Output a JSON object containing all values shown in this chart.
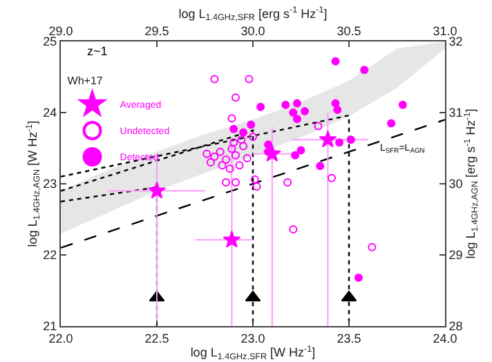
{
  "chart_data": {
    "type": "scatter",
    "xlabel": "log L$_{1.4GHz,SFR}$ [W Hz$^{-1}$]",
    "ylabel": "log L$_{1.4GHz,AGN}$ [W Hz$^{-1}$]",
    "x2label": "log L$_{1.4GHz,SFR}$ [erg s$^{-1}$ Hz$^{-1}$]",
    "y2label": "log L$_{1.4GHz,AGN}$ [erg s$^{-1}$ Hz$^{-1}$]",
    "legend_title": "Wh+17",
    "annotations": [
      "z~1",
      {
        "text": "L$_{SFR}$=L$_{AGN}$",
        "x": 23.78,
        "y": 23.6
      }
    ],
    "xlim": [
      22,
      24
    ],
    "xticks": [
      {
        "value": 22,
        "label": "22.0"
      },
      {
        "value": 22.5,
        "label": "22.5"
      },
      {
        "value": 23,
        "label": "23.0"
      },
      {
        "value": 23.5,
        "label": "23.5"
      },
      {
        "value": 24,
        "label": "24.0"
      }
    ],
    "ylim": [
      21,
      25
    ],
    "yticks": [
      21,
      22,
      23,
      24,
      25
    ],
    "x2lim": [
      29,
      31
    ],
    "x2ticks": [
      {
        "value": 29,
        "label": "29.0"
      },
      {
        "value": 29.5,
        "label": "29.5"
      },
      {
        "value": 30,
        "label": "30.0"
      },
      {
        "value": 30.5,
        "label": "30.5"
      },
      {
        "value": 31,
        "label": "31.0"
      }
    ],
    "y2lim": [
      28,
      32
    ],
    "y2ticks": [
      28,
      29,
      30,
      31,
      32
    ],
    "grid": false,
    "legend": "top left",
    "series": [
      {
        "type": "area",
        "color": "#e6e6e6",
        "x": [
          22.0,
          22.25,
          22.5,
          22.75,
          23.0,
          23.25,
          23.5,
          23.75,
          24.0
        ],
        "values": [
          null,
          null,
          null,
          null,
          null,
          null,
          null,
          null,
          null
        ],
        "lower": [
          22.3,
          22.6,
          22.9,
          23.15,
          23.4,
          23.65,
          23.95,
          24.35,
          24.9
        ],
        "upper": [
          22.9,
          23.2,
          23.45,
          23.7,
          23.9,
          24.15,
          24.45,
          24.9,
          25.0
        ]
      },
      {
        "type": "line",
        "color": "#000000",
        "line_style": "dashed",
        "x": [
          22.0,
          24.0
        ],
        "values": [
          22.1,
          23.9
        ]
      },
      {
        "type": "line",
        "color": "#000000",
        "line_style": "dotted",
        "x": [
          22.0,
          23.5,
          23.5
        ],
        "values": [
          23.1,
          23.96,
          21.0
        ]
      },
      {
        "type": "line",
        "color": "#000000",
        "line_style": "dotted",
        "x": [
          22.0,
          23.0,
          23.0
        ],
        "values": [
          22.9,
          23.75,
          21.0
        ]
      },
      {
        "type": "line",
        "color": "#000000",
        "line_style": "dotted",
        "x": [
          22.0,
          22.5,
          22.5
        ],
        "values": [
          22.75,
          22.95,
          21.0
        ]
      },
      {
        "type": "scatter",
        "marker": "triangle",
        "color": "#000000",
        "x": [
          22.5,
          23.0,
          23.5
        ],
        "values": [
          21.4,
          21.4,
          21.4
        ]
      },
      {
        "type": "scatter",
        "name": "Averaged",
        "marker": "star",
        "color": "#ff00ff",
        "x": [
          22.5,
          22.89,
          23.1,
          23.39
        ],
        "values": [
          22.9,
          22.21,
          23.42,
          23.62
        ],
        "errors": [
          [
            21.0,
            23.4
          ],
          [
            21.0,
            23.6
          ],
          [
            21.0,
            23.8
          ],
          [
            21.0,
            24.0
          ]
        ],
        "xerrors": [
          [
            22.25,
            22.75
          ],
          [
            22.7,
            23.0
          ],
          [
            23.0,
            23.2
          ],
          [
            23.2,
            23.6
          ]
        ]
      },
      {
        "type": "scatter",
        "name": "Undetected",
        "marker": "circle-open",
        "color": "#ff00ff",
        "x": [
          22.98,
          22.8,
          22.91,
          22.76,
          22.8,
          22.83,
          22.86,
          22.89,
          22.91,
          22.95,
          22.97,
          22.94,
          23.0,
          22.9,
          22.84,
          22.78,
          22.88,
          22.93,
          22.89,
          22.86,
          22.91,
          23.01,
          23.02,
          23.18,
          23.34,
          23.41,
          23.21,
          23.62
        ],
        "values": [
          24.47,
          24.47,
          24.21,
          23.42,
          23.38,
          23.45,
          23.34,
          23.49,
          23.4,
          23.53,
          23.36,
          23.62,
          23.66,
          23.58,
          23.26,
          23.3,
          23.21,
          23.26,
          23.92,
          23.02,
          23.02,
          23.06,
          22.96,
          23.02,
          23.81,
          23.08,
          22.36,
          22.11
        ]
      },
      {
        "type": "scatter",
        "name": "Detected",
        "marker": "circle",
        "color": "#ff00ff",
        "x": [
          23.43,
          23.58,
          23.04,
          23.17,
          23.23,
          23.43,
          23.21,
          23.27,
          23.23,
          23.44,
          23.78,
          23.72,
          23.51,
          23.45,
          23.25,
          23.22,
          23.35,
          23.08,
          23.08,
          23.55,
          22.9,
          22.99,
          22.95
        ],
        "values": [
          24.72,
          24.6,
          24.08,
          24.11,
          24.13,
          24.13,
          24.0,
          24.02,
          23.91,
          24.04,
          24.11,
          23.85,
          23.62,
          23.58,
          23.47,
          23.4,
          23.25,
          23.55,
          23.45,
          21.68,
          23.77,
          23.83,
          23.72
        ]
      }
    ]
  }
}
